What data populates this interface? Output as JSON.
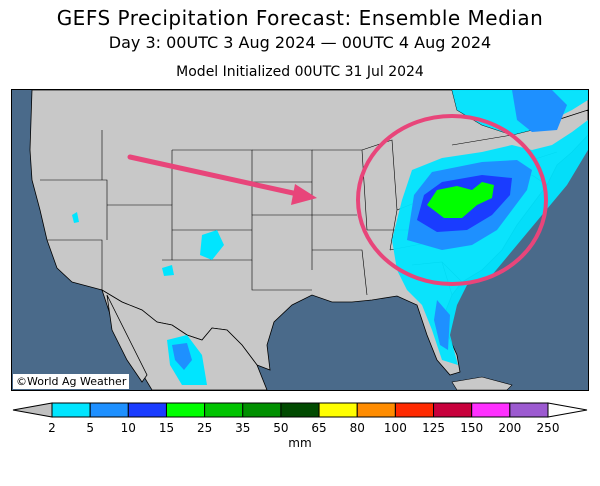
{
  "title": "GEFS Precipitation Forecast: Ensemble Median",
  "subtitle": "Day 3: 00UTC 3 Aug 2024 — 00UTC 4 Aug 2024",
  "model_init": "Model Initialized 00UTC 31 Jul 2024",
  "credit": "©World Ag Weather",
  "colors": {
    "ocean": "#4a6a8a",
    "land": "#c8c8c8",
    "annotation": "#e8457a"
  },
  "colorbar": {
    "unit": "mm",
    "ticks": [
      "2",
      "5",
      "10",
      "15",
      "25",
      "35",
      "50",
      "65",
      "80",
      "100",
      "125",
      "150",
      "200",
      "250"
    ],
    "colors": [
      "#00e5ff",
      "#1e90ff",
      "#1a3cff",
      "#00ff00",
      "#00c400",
      "#009000",
      "#004a00",
      "#ffff00",
      "#ff8c00",
      "#ff2a00",
      "#c8003c",
      "#ff30ff",
      "#9c5ad0"
    ]
  },
  "icons": [
    "arrow-icon",
    "highlight-ellipse-icon"
  ]
}
